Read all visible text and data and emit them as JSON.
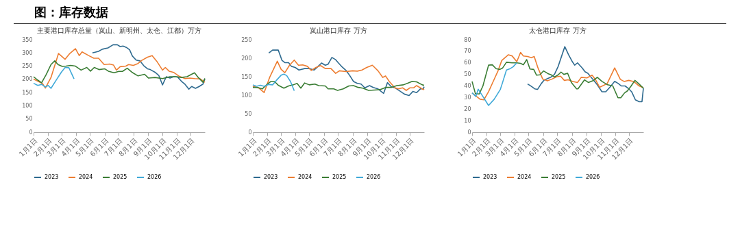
{
  "chart_data": [
    {
      "type": "line",
      "title": "主要港口库存总量（岚山、新明州、太仓、江都）万方",
      "annotations": [
        "图：库存数据"
      ],
      "legend": "bottom",
      "xlim": [
        "--01-01",
        "--12-31"
      ],
      "xticks": [
        {
          "value": "--01-01",
          "label": "1月1日"
        },
        {
          "value": "--02-01",
          "label": "2月1日"
        },
        {
          "value": "--03-01",
          "label": "3月1日"
        },
        {
          "value": "--04-01",
          "label": "4月1日"
        },
        {
          "value": "--05-01",
          "label": "5月1日"
        },
        {
          "value": "--06-01",
          "label": "6月1日"
        },
        {
          "value": "--07-01",
          "label": "7月1日"
        },
        {
          "value": "--08-01",
          "label": "8月1日"
        },
        {
          "value": "--09-01",
          "label": "9月1日"
        },
        {
          "value": "--10-01",
          "label": "10月1日"
        },
        {
          "value": "--11-01",
          "label": "11月1日"
        },
        {
          "value": "--12-01",
          "label": "12月1日"
        }
      ],
      "ylim": [
        0,
        350
      ],
      "yticks": [
        0,
        50,
        100,
        150,
        200,
        250,
        300,
        350
      ],
      "series": [
        {
          "name": "2023",
          "color": "#2e6a8f",
          "x": [
            "--05-06",
            "--05-19",
            "--05-27",
            "--06-08",
            "--06-19",
            "--06-28",
            "--07-04",
            "--07-10",
            "--07-18",
            "--07-24",
            "--07-30",
            "--08-07",
            "--08-15",
            "--08-23",
            "--08-31",
            "--09-06",
            "--09-16",
            "--09-24",
            "--10-02",
            "--10-10",
            "--10-18",
            "--10-26",
            "--11-03",
            "--11-11",
            "--11-19",
            "--11-27",
            "--12-03",
            "--12-11",
            "--12-19",
            "--12-27",
            "--12-31"
          ],
          "values": [
            300,
            306,
            314,
            319,
            331,
            331,
            324,
            326,
            320,
            312,
            288,
            273,
            270,
            252,
            240,
            237,
            227,
            215,
            179,
            210,
            205,
            210,
            209,
            193,
            181,
            163,
            173,
            166,
            173,
            182,
            203
          ]
        },
        {
          "name": "2024",
          "color": "#ed7d31",
          "x": [
            "--01-01",
            "--01-12",
            "--01-20",
            "--01-26",
            "--02-07",
            "--02-23",
            "--03-09",
            "--03-19",
            "--03-31",
            "--04-08",
            "--04-14",
            "--04-28",
            "--05-09",
            "--05-19",
            "--05-31",
            "--06-12",
            "--06-20",
            "--06-26",
            "--07-04",
            "--07-16",
            "--07-22",
            "--08-01",
            "--08-11",
            "--08-19",
            "--08-31",
            "--09-10",
            "--09-20",
            "--10-02",
            "--10-08",
            "--10-16",
            "--10-26",
            "--11-07",
            "--11-19",
            "--11-29",
            "--12-09",
            "--12-21",
            "--12-31"
          ],
          "values": [
            201,
            191,
            184,
            167,
            207,
            298,
            276,
            298,
            316,
            290,
            304,
            290,
            280,
            280,
            256,
            258,
            254,
            235,
            248,
            250,
            256,
            253,
            260,
            272,
            284,
            290,
            268,
            235,
            245,
            231,
            226,
            211,
            203,
            205,
            203,
            202,
            189
          ]
        },
        {
          "name": "2025",
          "color": "#3a7d34",
          "x": [
            "--01-01",
            "--01-10",
            "--01-18",
            "--01-28",
            "--02-07",
            "--02-15",
            "--02-22",
            "--03-03",
            "--03-11",
            "--03-21",
            "--03-31",
            "--04-12",
            "--04-24",
            "--05-02",
            "--05-10",
            "--05-20",
            "--06-01",
            "--06-09",
            "--06-21",
            "--07-01",
            "--07-09",
            "--07-19",
            "--07-29",
            "--08-11",
            "--08-25",
            "--09-02",
            "--09-16",
            "--10-02",
            "--10-18",
            "--10-30",
            "--11-11",
            "--11-23",
            "--12-09",
            "--12-17",
            "--12-27",
            "--12-31"
          ],
          "values": [
            210,
            197,
            187,
            219,
            256,
            270,
            256,
            249,
            250,
            253,
            250,
            235,
            245,
            231,
            245,
            237,
            240,
            231,
            225,
            230,
            230,
            242,
            227,
            213,
            219,
            205,
            207,
            203,
            210,
            210,
            207,
            210,
            225,
            207,
            189,
            203
          ]
        },
        {
          "name": "2026",
          "color": "#3fa9d8",
          "x": [
            "--01-01",
            "--01-10",
            "--01-18",
            "--01-26",
            "--02-01",
            "--02-07",
            "--02-17",
            "--03-01",
            "--03-09",
            "--03-17",
            "--03-28"
          ],
          "values": [
            185,
            177,
            181,
            171,
            177,
            166,
            194,
            227,
            245,
            244,
            202
          ]
        }
      ]
    },
    {
      "type": "line",
      "title": "岚山港口库存 万方",
      "legend": "bottom",
      "xlim": [
        "--01-01",
        "--12-31"
      ],
      "xticks": [
        {
          "value": "--01-01",
          "label": "1月1日"
        },
        {
          "value": "--02-01",
          "label": "2月1日"
        },
        {
          "value": "--03-01",
          "label": "3月1日"
        },
        {
          "value": "--04-01",
          "label": "4月1日"
        },
        {
          "value": "--05-01",
          "label": "5月1日"
        },
        {
          "value": "--06-01",
          "label": "6月1日"
        },
        {
          "value": "--07-01",
          "label": "7月1日"
        },
        {
          "value": "--08-01",
          "label": "8月1日"
        },
        {
          "value": "--09-01",
          "label": "9月1日"
        },
        {
          "value": "--10-01",
          "label": "10月1日"
        },
        {
          "value": "--11-01",
          "label": "11月1日"
        },
        {
          "value": "--12-01",
          "label": "12月1日"
        }
      ],
      "ylim": [
        0,
        250
      ],
      "yticks": [
        0,
        50,
        100,
        150,
        200,
        250
      ],
      "series": [
        {
          "name": "2023",
          "color": "#2e6a8f",
          "x": [
            "--02-04",
            "--02-12",
            "--02-24",
            "--03-04",
            "--03-10",
            "--03-18",
            "--03-24",
            "--04-01",
            "--04-09",
            "--04-21",
            "--05-01",
            "--05-11",
            "--05-19",
            "--05-27",
            "--06-04",
            "--06-10",
            "--06-18",
            "--06-26",
            "--07-02",
            "--07-10",
            "--07-18",
            "--07-26",
            "--08-03",
            "--08-11",
            "--08-19",
            "--08-27",
            "--09-06",
            "--09-14",
            "--09-24",
            "--10-06",
            "--10-14",
            "--10-22",
            "--10-30",
            "--11-11",
            "--11-19",
            "--11-29",
            "--12-07",
            "--12-15",
            "--12-23",
            "--12-29",
            "--12-31"
          ],
          "values": [
            214,
            222,
            222,
            194,
            188,
            188,
            178,
            175,
            168,
            172,
            172,
            168,
            177,
            187,
            181,
            184,
            202,
            196,
            187,
            176,
            167,
            153,
            137,
            132,
            130,
            120,
            126,
            121,
            117,
            105,
            134,
            123,
            120,
            110,
            103,
            99,
            110,
            107,
            117,
            117,
            123
          ]
        },
        {
          "name": "2024",
          "color": "#ed7d31",
          "x": [
            "--01-01",
            "--01-13",
            "--01-25",
            "--02-06",
            "--02-22",
            "--03-02",
            "--03-10",
            "--03-20",
            "--03-30",
            "--04-08",
            "--04-17",
            "--04-27",
            "--05-05",
            "--05-15",
            "--05-25",
            "--06-04",
            "--06-16",
            "--06-26",
            "--07-04",
            "--07-18",
            "--08-01",
            "--08-11",
            "--08-21",
            "--08-31",
            "--09-12",
            "--09-24",
            "--10-04",
            "--10-10",
            "--10-18",
            "--10-30",
            "--11-07",
            "--11-15",
            "--11-23",
            "--12-01",
            "--12-09",
            "--12-15",
            "--12-23",
            "--12-29",
            "--12-31"
          ],
          "values": [
            124,
            120,
            107,
            149,
            192,
            170,
            161,
            181,
            195,
            181,
            182,
            178,
            167,
            175,
            180,
            172,
            172,
            159,
            166,
            164,
            166,
            165,
            168,
            175,
            181,
            166,
            148,
            152,
            137,
            120,
            117,
            120,
            113,
            120,
            120,
            126,
            120,
            115,
            117
          ]
        },
        {
          "name": "2025",
          "color": "#3a7d34",
          "x": [
            "--01-01",
            "--01-11",
            "--01-21",
            "--01-31",
            "--02-08",
            "--02-16",
            "--02-24",
            "--03-08",
            "--03-18",
            "--03-28",
            "--04-05",
            "--04-13",
            "--04-21",
            "--05-01",
            "--05-13",
            "--05-21",
            "--06-04",
            "--06-10",
            "--06-22",
            "--06-30",
            "--07-12",
            "--07-24",
            "--08-03",
            "--08-13",
            "--08-23",
            "--09-04",
            "--09-16",
            "--09-28",
            "--10-10",
            "--10-22",
            "--11-03",
            "--11-17",
            "--11-27",
            "--12-05",
            "--12-15",
            "--12-27",
            "--12-31"
          ],
          "values": [
            121,
            121,
            117,
            129,
            137,
            137,
            127,
            119,
            125,
            128,
            132,
            119,
            133,
            128,
            130,
            126,
            125,
            117,
            117,
            113,
            117,
            125,
            126,
            121,
            119,
            113,
            114,
            115,
            121,
            121,
            126,
            128,
            133,
            137,
            136,
            128,
            127
          ]
        },
        {
          "name": "2026",
          "color": "#3fa9d8",
          "x": [
            "--01-01",
            "--01-09",
            "--01-17",
            "--01-25",
            "--02-04",
            "--02-12",
            "--02-20",
            "--03-02",
            "--03-08",
            "--03-14",
            "--03-22",
            "--03-30"
          ],
          "values": [
            128,
            124,
            127,
            124,
            129,
            128,
            140,
            154,
            157,
            153,
            137,
            112
          ]
        }
      ]
    },
    {
      "type": "line",
      "title": "太仓港口库存 万方",
      "legend": "bottom",
      "xlim": [
        "--01-01",
        "--12-31"
      ],
      "xticks": [
        {
          "value": "--01-01",
          "label": "1月1日"
        },
        {
          "value": "--02-01",
          "label": "2月1日"
        },
        {
          "value": "--03-01",
          "label": "3月1日"
        },
        {
          "value": "--04-01",
          "label": "4月1日"
        },
        {
          "value": "--05-01",
          "label": "5月1日"
        },
        {
          "value": "--06-01",
          "label": "6月1日"
        },
        {
          "value": "--07-01",
          "label": "7月1日"
        },
        {
          "value": "--08-01",
          "label": "8月1日"
        },
        {
          "value": "--09-01",
          "label": "9月1日"
        },
        {
          "value": "--10-01",
          "label": "10月1日"
        },
        {
          "value": "--11-01",
          "label": "11月1日"
        },
        {
          "value": "--12-01",
          "label": "12月1日"
        }
      ],
      "ylim": [
        0,
        80
      ],
      "yticks": [
        0,
        10,
        20,
        30,
        40,
        50,
        60,
        70,
        80
      ],
      "series": [
        {
          "name": "2023",
          "color": "#2e6a8f",
          "x": [
            "--04-29",
            "--05-06",
            "--05-14",
            "--05-20",
            "--05-28",
            "--06-03",
            "--06-17",
            "--06-25",
            "--07-03",
            "--07-17",
            "--07-25",
            "--08-02",
            "--08-07",
            "--08-13",
            "--08-23",
            "--08-29",
            "--09-04",
            "--09-16",
            "--09-24",
            "--10-04",
            "--10-12",
            "--10-21",
            "--10-31",
            "--11-08",
            "--11-14",
            "--11-22",
            "--11-30",
            "--12-06",
            "--12-14",
            "--12-22",
            "--12-28",
            "--12-31"
          ],
          "values": [
            41.7,
            39.9,
            37.5,
            37,
            42,
            45,
            47.5,
            50,
            57,
            74,
            67,
            61,
            58,
            60,
            55.6,
            52.3,
            51,
            45,
            41,
            35,
            35,
            39,
            44,
            42,
            40,
            40,
            37.5,
            35,
            28,
            26.4,
            26.4,
            38
          ]
        },
        {
          "name": "2024",
          "color": "#ed7d31",
          "x": [
            "--01-01",
            "--01-10",
            "--01-18",
            "--01-26",
            "--02-05",
            "--02-15",
            "--02-25",
            "--03-05",
            "--03-15",
            "--03-19",
            "--03-27",
            "--04-06",
            "--04-14",
            "--04-20",
            "--04-29",
            "--05-07",
            "--05-13",
            "--05-21",
            "--05-31",
            "--06-10",
            "--06-20",
            "--06-30",
            "--07-08",
            "--07-16",
            "--07-24",
            "--08-03",
            "--08-13",
            "--08-21",
            "--09-02",
            "--09-13",
            "--09-20",
            "--09-29",
            "--10-15",
            "--10-31",
            "--11-12",
            "--11-20",
            "--11-30",
            "--12-10",
            "--12-22",
            "--12-31"
          ],
          "values": [
            34,
            31,
            28.5,
            28,
            35,
            44,
            53,
            62,
            65.5,
            67,
            66,
            61,
            69,
            65.9,
            65.5,
            64.4,
            65.5,
            55.6,
            46,
            44.4,
            46,
            48,
            48.4,
            44.8,
            45.3,
            43.9,
            43,
            47.5,
            47,
            49.3,
            45.7,
            38.8,
            42,
            55.6,
            45.7,
            43.9,
            44.8,
            43.9,
            40,
            38.5
          ]
        },
        {
          "name": "2025",
          "color": "#3a7d34",
          "x": [
            "--01-01",
            "--01-08",
            "--01-16",
            "--01-24",
            "--02-05",
            "--02-13",
            "--02-21",
            "--03-01",
            "--03-07",
            "--03-15",
            "--03-27",
            "--04-06",
            "--04-14",
            "--04-20",
            "--04-27",
            "--05-04",
            "--05-12",
            "--05-18",
            "--05-25",
            "--06-02",
            "--06-11",
            "--06-18",
            "--06-25",
            "--07-03",
            "--07-09",
            "--07-15",
            "--07-23",
            "--07-31",
            "--08-11",
            "--08-14",
            "--08-28",
            "--09-05",
            "--09-16",
            "--09-24",
            "--10-04",
            "--10-16",
            "--10-27",
            "--11-07",
            "--11-13",
            "--11-21",
            "--11-27",
            "--12-05",
            "--12-13",
            "--12-21",
            "--12-31"
          ],
          "values": [
            43.9,
            33.4,
            33,
            40,
            58,
            58.3,
            55,
            54.3,
            55.6,
            60.5,
            60,
            60,
            59.6,
            58.3,
            62.8,
            54.7,
            54.3,
            49.3,
            49.6,
            53,
            50.7,
            49.6,
            47.8,
            49.6,
            52,
            50,
            51,
            43,
            37.5,
            37.5,
            45.3,
            43,
            44.8,
            47.5,
            43.9,
            41,
            40,
            29.8,
            29.8,
            34,
            35.7,
            40,
            44.8,
            42,
            38
          ]
        },
        {
          "name": "2026",
          "color": "#3fa9d8",
          "x": [
            "--01-01",
            "--01-09",
            "--01-14",
            "--01-20",
            "--02-05",
            "--02-17",
            "--03-02",
            "--03-06",
            "--03-15",
            "--03-23",
            "--03-29",
            "--04-06"
          ],
          "values": [
            34,
            30.9,
            37.2,
            33.4,
            23.1,
            28.5,
            37,
            42,
            53.8,
            55,
            56.5,
            60
          ]
        }
      ]
    }
  ]
}
